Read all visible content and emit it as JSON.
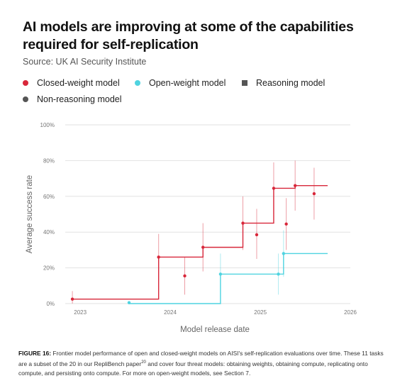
{
  "title": "AI models are improving at some of the capabilities required for self-replication",
  "source": "Source: UK AI Security Institute",
  "legend": {
    "closed": "Closed-weight model",
    "open": "Open-weight model",
    "reasoning": "Reasoning model",
    "non_reasoning": "Non-reasoning model"
  },
  "colors": {
    "closed": "#d8273a",
    "open": "#4fd3e0",
    "marker": "#555555",
    "grid": "#e2e2e2"
  },
  "caption": {
    "label": "FIGURE 16:",
    "text": " Frontier model performance of open and closed-weight models on AISI's self-replication evaluations over time. These 11 tasks are a subset of the 20 in our RepliBench paper",
    "superscript": "20",
    "text2": " and cover four threat models: obtaining weights, obtaining compute, replicating onto compute, and persisting onto compute. For more on open-weight models, see Section 7."
  },
  "chart_data": {
    "type": "scatter",
    "title": "",
    "xlabel": "Model release date",
    "ylabel": "Average success rate",
    "xlim": [
      "2022-11-01",
      "2026-01-01"
    ],
    "ylim": [
      0,
      100
    ],
    "x_ticks": [
      "2023",
      "2024",
      "2025",
      "2026"
    ],
    "y_ticks": [
      "0%",
      "20%",
      "40%",
      "60%",
      "80%",
      "100%"
    ],
    "grid": "horizontal",
    "series": [
      {
        "name": "Closed-weight model",
        "points": [
          {
            "date": "2022-11-30",
            "y": 2.5,
            "low": 0,
            "high": 7
          },
          {
            "date": "2023-11-15",
            "y": 26,
            "low": 13,
            "high": 39
          },
          {
            "date": "2024-02-29",
            "y": 15.5,
            "low": 5,
            "high": 26
          },
          {
            "date": "2024-05-13",
            "y": 31.5,
            "low": 18,
            "high": 45
          },
          {
            "date": "2024-10-22",
            "y": 45,
            "low": 30,
            "high": 60
          },
          {
            "date": "2024-12-17",
            "y": 38.5,
            "low": 25,
            "high": 53
          },
          {
            "date": "2025-02-24",
            "y": 64.5,
            "low": 50,
            "high": 79
          },
          {
            "date": "2025-04-16",
            "y": 44.5,
            "low": 30,
            "high": 59
          },
          {
            "date": "2025-05-22",
            "y": 66,
            "low": 52,
            "high": 80
          },
          {
            "date": "2025-08-07",
            "y": 61.5,
            "low": 47,
            "high": 76
          }
        ],
        "frontier": [
          {
            "date": "2022-11-30",
            "y": 2.5
          },
          {
            "date": "2023-11-15",
            "y": 26
          },
          {
            "date": "2024-05-13",
            "y": 31.5
          },
          {
            "date": "2024-10-22",
            "y": 45
          },
          {
            "date": "2025-02-24",
            "y": 64.5
          },
          {
            "date": "2025-05-22",
            "y": 66
          },
          {
            "date": "2025-10-01",
            "y": 66
          }
        ]
      },
      {
        "name": "Open-weight model",
        "points": [
          {
            "date": "2023-07-18",
            "y": 0.5,
            "low": 0,
            "high": 1
          },
          {
            "date": "2024-07-23",
            "y": 16.5,
            "low": 5,
            "high": 28
          },
          {
            "date": "2025-03-15",
            "y": 16.5,
            "low": 5,
            "high": 28
          },
          {
            "date": "2025-04-05",
            "y": 28,
            "low": 15,
            "high": 41
          }
        ],
        "frontier": [
          {
            "date": "2023-07-18",
            "y": 0
          },
          {
            "date": "2024-07-23",
            "y": 16.5
          },
          {
            "date": "2025-04-05",
            "y": 28
          },
          {
            "date": "2025-10-01",
            "y": 28
          }
        ]
      }
    ]
  }
}
